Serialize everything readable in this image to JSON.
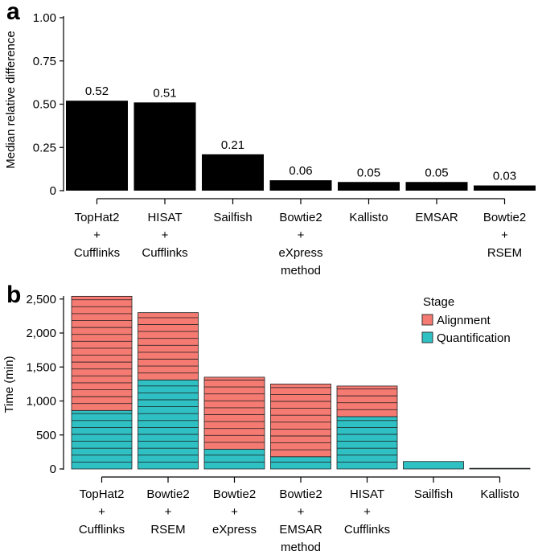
{
  "chart_data": [
    {
      "panel": "a",
      "type": "bar",
      "title": "",
      "xlabel": "",
      "ylabel": "Median relative difference",
      "ylim": [
        0,
        1.0
      ],
      "yticks": [
        "0",
        "0.25",
        "0.50",
        "0.75",
        "1.00"
      ],
      "ytick_values": [
        0,
        0.25,
        0.5,
        0.75,
        1.0
      ],
      "categories": [
        [
          "TopHat2",
          "+",
          "Cufflinks"
        ],
        [
          "HISAT",
          "+",
          "Cufflinks"
        ],
        [
          "Sailfish"
        ],
        [
          "Bowtie2",
          "+",
          "eXpress",
          "method"
        ],
        [
          "Kallisto"
        ],
        [
          "EMSAR"
        ],
        [
          "Bowtie2",
          "+",
          "RSEM"
        ]
      ],
      "values": [
        0.52,
        0.51,
        0.21,
        0.06,
        0.05,
        0.05,
        0.03
      ],
      "value_labels": [
        "0.52",
        "0.51",
        "0.21",
        "0.06",
        "0.05",
        "0.05",
        "0.03"
      ],
      "bar_color": "#000000"
    },
    {
      "panel": "b",
      "type": "bar",
      "stacked": true,
      "title": "",
      "xlabel": "",
      "ylabel": "Time (min)",
      "ylim": [
        0,
        2700
      ],
      "yticks": [
        "0",
        "500",
        "1,000",
        "1,500",
        "2,000",
        "2,500"
      ],
      "ytick_values": [
        0,
        500,
        1000,
        1500,
        2000,
        2500
      ],
      "categories": [
        [
          "TopHat2",
          "+",
          "Cufflinks"
        ],
        [
          "Bowtie2",
          "+",
          "RSEM"
        ],
        [
          "Bowtie2",
          "+",
          "eXpress"
        ],
        [
          "Bowtie2",
          "+",
          "EMSAR",
          "method"
        ],
        [
          "HISAT",
          "+",
          "Cufflinks"
        ],
        [
          "Sailfish"
        ],
        [
          "Kallisto"
        ]
      ],
      "series": [
        {
          "name": "Quantification",
          "color": "#2fc0c4",
          "values": [
            860,
            1310,
            290,
            180,
            770,
            110,
            10
          ]
        },
        {
          "name": "Alignment",
          "color": "#f47a72",
          "values": [
            1680,
            990,
            1060,
            1070,
            450,
            0,
            0
          ]
        }
      ],
      "legend": {
        "title": "Stage",
        "entries": [
          "Alignment",
          "Quantification"
        ],
        "placement": "top-right"
      }
    }
  ]
}
